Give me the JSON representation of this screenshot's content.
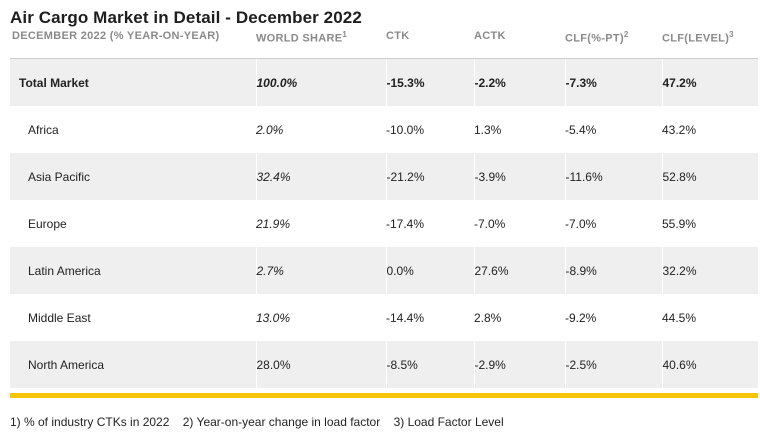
{
  "title": "Air Cargo Market in Detail - December 2022",
  "headers": {
    "region": "DECEMBER 2022 (% YEAR-ON-YEAR)",
    "world_share": "WORLD SHARE",
    "world_share_note": "1",
    "ctk": "CTK",
    "actk": "ACTK",
    "clf_pt": "CLF(%-PT)",
    "clf_pt_note": "2",
    "clf_level": "CLF(LEVEL)",
    "clf_level_note": "3"
  },
  "rows": [
    {
      "region": "Total Market",
      "world_share": "100.0%",
      "ctk": "-15.3%",
      "actk": "-2.2%",
      "clf_pt": "-7.3%",
      "clf_level": "47.2%"
    },
    {
      "region": "Africa",
      "world_share": "2.0%",
      "ctk": "-10.0%",
      "actk": "1.3%",
      "clf_pt": "-5.4%",
      "clf_level": "43.2%"
    },
    {
      "region": "Asia Pacific",
      "world_share": "32.4%",
      "ctk": "-21.2%",
      "actk": "-3.9%",
      "clf_pt": "-11.6%",
      "clf_level": "52.8%"
    },
    {
      "region": "Europe",
      "world_share": "21.9%",
      "ctk": "-17.4%",
      "actk": "-7.0%",
      "clf_pt": "-7.0%",
      "clf_level": "55.9%"
    },
    {
      "region": "Latin America",
      "world_share": "2.7%",
      "ctk": "0.0%",
      "actk": "27.6%",
      "clf_pt": "-8.9%",
      "clf_level": "32.2%"
    },
    {
      "region": "Middle East",
      "world_share": "13.0%",
      "ctk": "-14.4%",
      "actk": "2.8%",
      "clf_pt": "-9.2%",
      "clf_level": "44.5%"
    },
    {
      "region": "North America",
      "world_share": "28.0%",
      "ctk": "-8.5%",
      "actk": "-2.9%",
      "clf_pt": "-2.5%",
      "clf_level": "40.6%"
    }
  ],
  "footnotes": [
    "1) % of industry CTKs in 2022",
    "2) Year-on-year change in load factor",
    "3) Load Factor Level"
  ],
  "colors": {
    "accent_bar": "#f7c600",
    "row_shade": "#efefef",
    "header_text": "#8a8a8a"
  }
}
